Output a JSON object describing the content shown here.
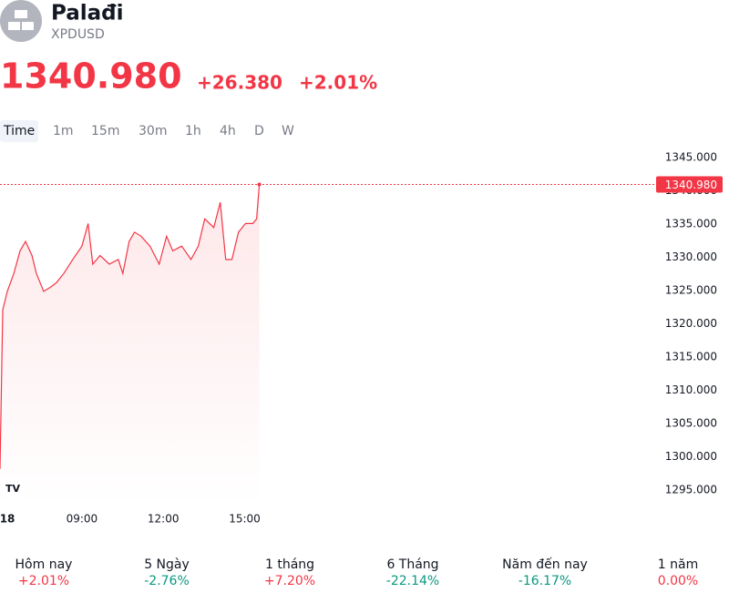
{
  "header": {
    "name": "Palađi",
    "symbol": "XPDUSD",
    "price": "1340.980",
    "change": "+26.380",
    "change_pct": "+2.01%",
    "color": "#f23645"
  },
  "tabs": [
    "Time",
    "1m",
    "15m",
    "30m",
    "1h",
    "4h",
    "D",
    "W"
  ],
  "chart_data": {
    "type": "area",
    "color": "#f23645",
    "x": [
      5.98,
      6.08,
      6.25,
      6.49,
      6.72,
      6.92,
      7.16,
      7.32,
      7.59,
      7.83,
      8.06,
      8.33,
      8.66,
      9,
      9.23,
      9.4,
      9.67,
      10.01,
      10.34,
      10.51,
      10.74,
      10.94,
      11.18,
      11.51,
      11.85,
      12.12,
      12.35,
      12.68,
      13.02,
      13.29,
      13.53,
      13.86,
      14.1,
      14.3,
      14.53,
      14.77,
      15.03,
      15.3,
      15.44,
      15.54
    ],
    "values": [
      1298.2,
      1322.1,
      1324.9,
      1327.6,
      1331,
      1332.4,
      1330.3,
      1327.6,
      1324.9,
      1325.5,
      1326.2,
      1327.6,
      1329.7,
      1331.7,
      1335.1,
      1329,
      1330.3,
      1329,
      1329.7,
      1327.6,
      1332.4,
      1333.8,
      1333.2,
      1331.7,
      1329,
      1333.2,
      1331,
      1331.7,
      1329.7,
      1331.7,
      1335.8,
      1334.5,
      1338.3,
      1329.7,
      1329.7,
      1333.8,
      1335.1,
      1335.1,
      1335.8,
      1340.98
    ],
    "xlim": [
      5.98,
      30
    ],
    "xticks": [
      {
        "value": 6.25,
        "label": "18"
      },
      {
        "value": 9,
        "label": "09:00"
      },
      {
        "value": 12,
        "label": "12:00"
      },
      {
        "value": 15,
        "label": "15:00"
      }
    ],
    "ylim": [
      1292.7,
      1346.8
    ],
    "yticks": [
      {
        "value": 1295,
        "label": "1295.000"
      },
      {
        "value": 1300,
        "label": "1300.000"
      },
      {
        "value": 1305,
        "label": "1305.000"
      },
      {
        "value": 1310,
        "label": "1310.000"
      },
      {
        "value": 1315,
        "label": "1315.000"
      },
      {
        "value": 1320,
        "label": "1320.000"
      },
      {
        "value": 1325,
        "label": "1325.000"
      },
      {
        "value": 1330,
        "label": "1330.000"
      },
      {
        "value": 1335,
        "label": "1335.000"
      },
      {
        "value": 1340,
        "label": "1340.000"
      },
      {
        "value": 1345,
        "label": "1345.000"
      }
    ],
    "price_line": {
      "value": 1340.98,
      "label": "1340.980"
    }
  },
  "periods": [
    {
      "name": "Hôm nay",
      "value": "+2.01%",
      "color": "#f23645"
    },
    {
      "name": "5 Ngày",
      "value": "-2.76%",
      "color": "#089981"
    },
    {
      "name": "1 tháng",
      "value": "+7.20%",
      "color": "#f23645"
    },
    {
      "name": "6 Tháng",
      "value": "-22.14%",
      "color": "#089981"
    },
    {
      "name": "Năm đến nay",
      "value": "-16.17%",
      "color": "#089981"
    },
    {
      "name": "1 năm",
      "value": "0.00%",
      "color": "#f23645"
    }
  ]
}
